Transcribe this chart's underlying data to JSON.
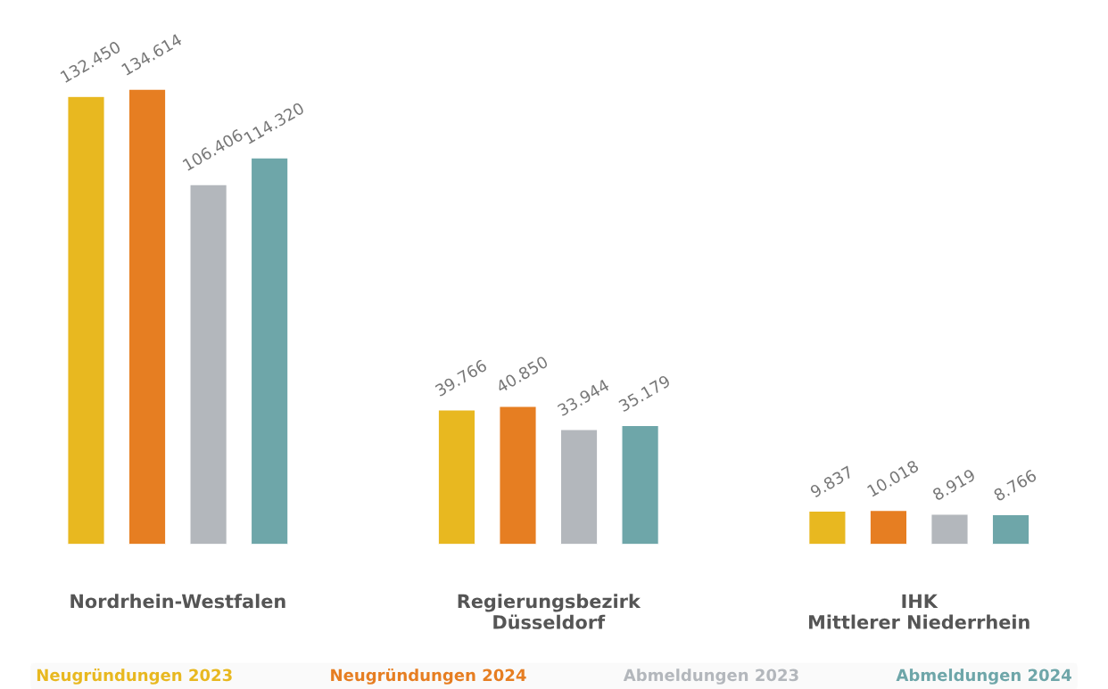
{
  "chart_data": {
    "type": "bar",
    "categories": [
      "Nordrhein-Westfalen",
      "Regierungsbezirk\nDüsseldorf",
      "IHK\nMittlerer Niederrhein"
    ],
    "series": [
      {
        "name": "Neugründungen 2023",
        "color": "#e8b820",
        "values": [
          132450,
          39766,
          9837
        ],
        "value_labels": [
          "132.450",
          "39.766",
          "9.837"
        ]
      },
      {
        "name": "Neugründungen 2024",
        "color": "#e67e22",
        "values": [
          134614,
          40850,
          10018
        ],
        "value_labels": [
          "134.614",
          "40.850",
          "10.018"
        ]
      },
      {
        "name": "Abmeldungen 2023",
        "color": "#b3b7bc",
        "values": [
          106406,
          33944,
          8919
        ],
        "value_labels": [
          "106.406",
          "33.944",
          "8.919"
        ]
      },
      {
        "name": "Abmeldungen 2024",
        "color": "#6ea6a9",
        "values": [
          114320,
          35179,
          8766
        ],
        "value_labels": [
          "114.320",
          "35.179",
          "8.766"
        ]
      }
    ],
    "legend": "bottom",
    "tick_labels": "x",
    "grid": false
  }
}
